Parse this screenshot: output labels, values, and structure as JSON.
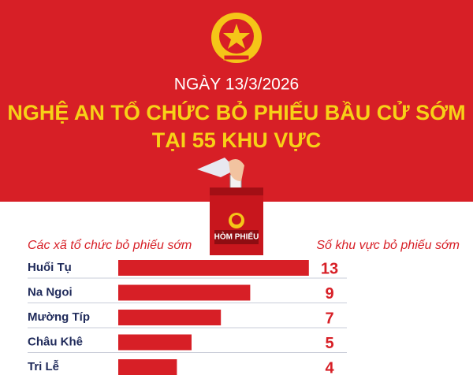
{
  "chart_data": {
    "type": "bar",
    "orientation": "horizontal",
    "subtitle": "NGÀY 13/3/2026",
    "title": [
      "NGHỆ AN TỔ CHỨC BỎ PHIẾU BẦU CỬ SỚM",
      "TẠI 55 KHU VỰC"
    ],
    "box_label": "HÒM PHIẾU",
    "category_header": "Các xã tổ chức bỏ phiếu sớm",
    "value_header": "Số khu vực bỏ phiếu sớm",
    "categories": [
      "Huổi Tụ",
      "Na Ngoi",
      "Mường Típ",
      "Châu Khê",
      "Tri Lễ"
    ],
    "values": [
      13,
      9,
      7,
      5,
      4
    ],
    "color": "#d71f26"
  }
}
